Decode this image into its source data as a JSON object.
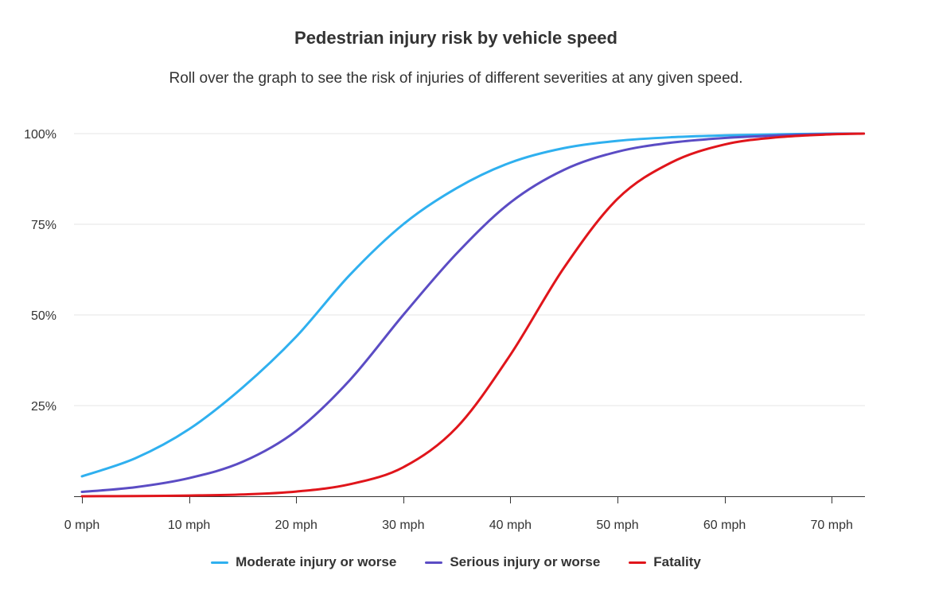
{
  "title": "Pedestrian injury risk by vehicle speed",
  "subtitle": "Roll over the graph to see the risk of injuries of different severities at any given speed.",
  "chart_data": {
    "type": "line",
    "title": "Pedestrian injury risk by vehicle speed",
    "subtitle": "Roll over the graph to see the risk of injuries of different severities at any given speed.",
    "xlabel": "",
    "ylabel": "",
    "xlim": [
      0,
      73
    ],
    "ylim": [
      0,
      100
    ],
    "x_ticks": [
      0,
      10,
      20,
      30,
      40,
      50,
      60,
      70
    ],
    "x_tick_labels": [
      "0 mph",
      "10 mph",
      "20 mph",
      "30 mph",
      "40 mph",
      "50 mph",
      "60 mph",
      "70 mph"
    ],
    "y_ticks": [
      25,
      50,
      75,
      100
    ],
    "y_tick_labels": [
      "25%",
      "50%",
      "75%",
      "100%"
    ],
    "grid": true,
    "legend_position": "bottom-center",
    "x": [
      0,
      5,
      10,
      15,
      20,
      25,
      30,
      35,
      40,
      45,
      50,
      55,
      60,
      65,
      70,
      73
    ],
    "series": [
      {
        "name": "Moderate injury or worse",
        "color": "#2fb0ef",
        "values": [
          5.5,
          10.5,
          18.5,
          30,
          44,
          61,
          75,
          85,
          92,
          96,
          98,
          99,
          99.5,
          99.8,
          100,
          100
        ]
      },
      {
        "name": "Serious injury or worse",
        "color": "#5b4cc4",
        "values": [
          1.2,
          2.5,
          5,
          9.5,
          18,
          32,
          50,
          67,
          81,
          90,
          95,
          97.5,
          98.8,
          99.5,
          99.9,
          100
        ]
      },
      {
        "name": "Fatality",
        "color": "#e0151b",
        "values": [
          0,
          0.05,
          0.2,
          0.5,
          1.3,
          3.3,
          8,
          19,
          39,
          63,
          82,
          92,
          97,
          99,
          99.8,
          100
        ]
      }
    ]
  }
}
